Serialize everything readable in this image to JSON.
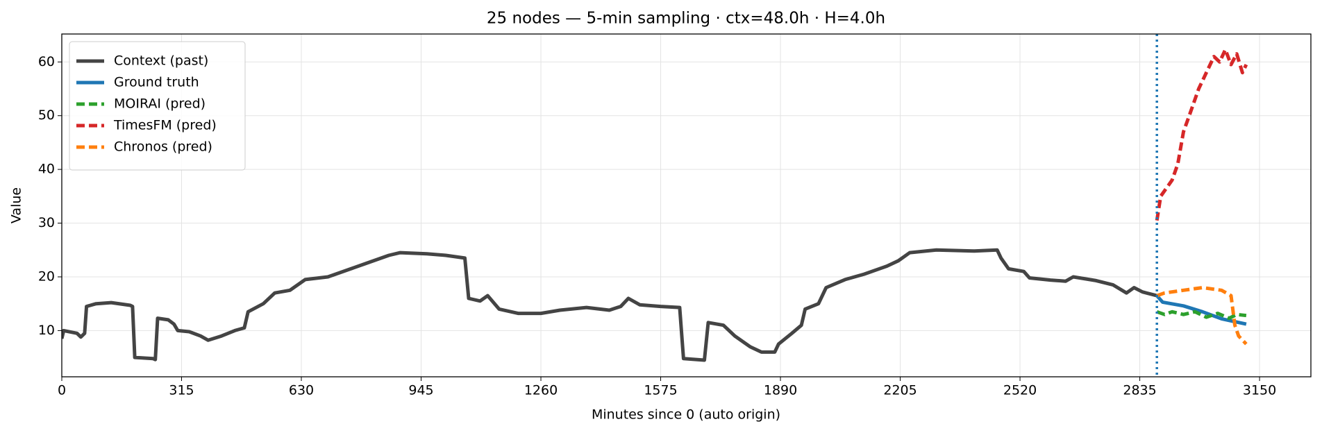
{
  "chart_data": {
    "type": "line",
    "title": "25 nodes — 5-min sampling · ctx=48.0h · H=4.0h",
    "xlabel": "Minutes since 0 (auto origin)",
    "ylabel": "Value",
    "xlim": [
      0,
      3285
    ],
    "ylim": [
      1.4,
      65.2
    ],
    "xticks": [
      0,
      315,
      630,
      945,
      1260,
      1575,
      1890,
      2205,
      2520,
      2835,
      3150
    ],
    "yticks": [
      10,
      20,
      30,
      40,
      50,
      60
    ],
    "grid": true,
    "legend": "upper left",
    "forecast_start": 2880,
    "forecast_line_color": "#1f77b4",
    "series": [
      {
        "name": "Context (past)",
        "color": "#444444",
        "dashed": false,
        "x": [
          0,
          5,
          40,
          50,
          60,
          65,
          90,
          130,
          180,
          186,
          192,
          240,
          246,
          252,
          280,
          295,
          305,
          335,
          365,
          385,
          420,
          455,
          480,
          490,
          530,
          560,
          600,
          640,
          700,
          760,
          800,
          860,
          890,
          960,
          1010,
          1060,
          1070,
          1100,
          1120,
          1150,
          1200,
          1260,
          1310,
          1380,
          1440,
          1470,
          1490,
          1520,
          1575,
          1625,
          1635,
          1690,
          1700,
          1740,
          1770,
          1810,
          1840,
          1875,
          1885,
          1920,
          1945,
          1955,
          1990,
          2010,
          2060,
          2110,
          2170,
          2200,
          2230,
          2300,
          2400,
          2460,
          2470,
          2490,
          2530,
          2545,
          2600,
          2640,
          2660,
          2720,
          2765,
          2800,
          2820,
          2842,
          2880
        ],
        "values": [
          8.5,
          10,
          9.5,
          8.8,
          9.5,
          14.5,
          15,
          15.2,
          14.7,
          14.5,
          5,
          4.8,
          4.6,
          12.3,
          12,
          11.2,
          10,
          9.8,
          9,
          8.2,
          9,
          10,
          10.5,
          13.5,
          15,
          17,
          17.5,
          19.5,
          20,
          21.5,
          22.5,
          24,
          24.5,
          24.3,
          24,
          23.5,
          16,
          15.5,
          16.5,
          14,
          13.2,
          13.2,
          13.8,
          14.3,
          13.8,
          14.5,
          16,
          14.8,
          14.5,
          14.3,
          4.8,
          4.5,
          11.5,
          11,
          9,
          7,
          6,
          6,
          7.5,
          9.5,
          11,
          14,
          15,
          18,
          19.5,
          20.5,
          22,
          23,
          24.5,
          25,
          24.8,
          25,
          23.5,
          21.5,
          21,
          19.8,
          19.4,
          19.2,
          20,
          19.3,
          18.5,
          17,
          18,
          17.2,
          16.5
        ]
      },
      {
        "name": "Ground truth",
        "color": "#1f77b4",
        "dashed": false,
        "x": [
          2880,
          2895,
          2950,
          3000,
          3050,
          3115
        ],
        "values": [
          16.5,
          15.3,
          14.6,
          13.5,
          12.2,
          11.2
        ]
      },
      {
        "name": "MOIRAI (pred)",
        "color": "#2ca02c",
        "dashed": true,
        "x": [
          2880,
          2900,
          2920,
          2950,
          2980,
          3010,
          3040,
          3070,
          3090,
          3115
        ],
        "values": [
          13.5,
          13,
          13.5,
          13,
          13.5,
          12.5,
          13.2,
          12.3,
          13,
          12.8
        ]
      },
      {
        "name": "TimesFM (pred)",
        "color": "#d62728",
        "dashed": true,
        "x": [
          2880,
          2890,
          2920,
          2935,
          2950,
          2965,
          2990,
          3010,
          3030,
          3045,
          3060,
          3075,
          3090,
          3105,
          3115
        ],
        "values": [
          30.5,
          35,
          38,
          41,
          47,
          50,
          55,
          58,
          61,
          60,
          62.3,
          59.5,
          61.5,
          58,
          59.5
        ]
      },
      {
        "name": "Chronos (pred)",
        "color": "#ff7f0e",
        "dashed": true,
        "x": [
          2880,
          2900,
          2950,
          3000,
          3050,
          3075,
          3085,
          3095,
          3115
        ],
        "values": [
          16.5,
          17,
          17.5,
          18,
          17.5,
          16.5,
          11,
          9,
          7.5
        ]
      }
    ]
  }
}
